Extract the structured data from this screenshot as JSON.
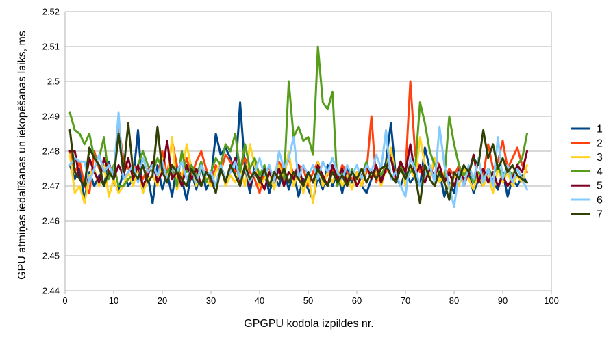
{
  "chart_data": {
    "type": "line",
    "title": "",
    "xlabel": "GPGPU kodola izpildes nr.",
    "ylabel": "GPU atmiņas iedalīšanas un iekopēšanas laiks, ms",
    "xlim": [
      0,
      100
    ],
    "ylim": [
      2.44,
      2.52
    ],
    "xticks": [
      "0",
      "10",
      "20",
      "30",
      "40",
      "50",
      "60",
      "70",
      "80",
      "90",
      "100"
    ],
    "yticks": [
      "2.44",
      "2.45",
      "2.46",
      "2.47",
      "2.48",
      "2.49",
      "2.5",
      "2.51",
      "2.52"
    ],
    "grid": true,
    "legend_position": "right",
    "series": [
      {
        "name": "1",
        "color": "#004586",
        "values": [
          2.476,
          2.472,
          2.475,
          2.466,
          2.474,
          2.47,
          2.473,
          2.47,
          2.477,
          2.471,
          2.469,
          2.474,
          2.47,
          2.472,
          2.486,
          2.468,
          2.473,
          2.465,
          2.476,
          2.469,
          2.474,
          2.467,
          2.476,
          2.472,
          2.466,
          2.474,
          2.469,
          2.476,
          2.469,
          2.472,
          2.485,
          2.479,
          2.481,
          2.478,
          2.473,
          2.494,
          2.475,
          2.468,
          2.476,
          2.471,
          2.474,
          2.468,
          2.473,
          2.47,
          2.475,
          2.469,
          2.474,
          2.467,
          2.472,
          2.469,
          2.466,
          2.473,
          2.469,
          2.476,
          2.47,
          2.474,
          2.468,
          2.475,
          2.471,
          2.474,
          2.47,
          2.468,
          2.472,
          2.475,
          2.471,
          2.477,
          2.488,
          2.473,
          2.47,
          2.474,
          2.471,
          2.473,
          2.47,
          2.481,
          2.475,
          2.472,
          2.474,
          2.467,
          2.471,
          2.468,
          2.475,
          2.47,
          2.474,
          2.468,
          2.472,
          2.47,
          2.475,
          2.471,
          2.469,
          2.474,
          2.467,
          2.472,
          2.47,
          2.473,
          2.471
        ]
      },
      {
        "name": "2",
        "color": "#ff420e",
        "values": [
          2.48,
          2.474,
          2.477,
          2.47,
          2.468,
          2.48,
          2.475,
          2.477,
          2.476,
          2.474,
          2.487,
          2.478,
          2.475,
          2.476,
          2.474,
          2.472,
          2.475,
          2.476,
          2.472,
          2.48,
          2.473,
          2.483,
          2.476,
          2.472,
          2.478,
          2.473,
          2.477,
          2.48,
          2.475,
          2.471,
          2.476,
          2.474,
          2.479,
          2.477,
          2.474,
          2.475,
          2.478,
          2.474,
          2.472,
          2.468,
          2.474,
          2.475,
          2.472,
          2.477,
          2.474,
          2.478,
          2.473,
          2.476,
          2.475,
          2.47,
          2.474,
          2.477,
          2.472,
          2.473,
          2.475,
          2.471,
          2.476,
          2.474,
          2.472,
          2.473,
          2.47,
          2.474,
          2.49,
          2.471,
          2.476,
          2.474,
          2.479,
          2.472,
          2.477,
          2.474,
          2.5,
          2.479,
          2.474,
          2.476,
          2.472,
          2.478,
          2.476,
          2.471,
          2.475,
          2.473,
          2.476,
          2.47,
          2.474,
          2.472,
          2.477,
          2.473,
          2.482,
          2.475,
          2.477,
          2.483,
          2.475,
          2.478,
          2.481,
          2.476,
          2.474
        ]
      },
      {
        "name": "3",
        "color": "#ffd320",
        "values": [
          2.479,
          2.468,
          2.47,
          2.465,
          2.473,
          2.475,
          2.47,
          2.476,
          2.467,
          2.472,
          2.468,
          2.47,
          2.474,
          2.47,
          2.476,
          2.468,
          2.472,
          2.473,
          2.47,
          2.478,
          2.471,
          2.484,
          2.469,
          2.473,
          2.482,
          2.475,
          2.47,
          2.476,
          2.472,
          2.47,
          2.474,
          2.477,
          2.47,
          2.473,
          2.471,
          2.475,
          2.47,
          2.482,
          2.476,
          2.47,
          2.472,
          2.474,
          2.469,
          2.476,
          2.472,
          2.48,
          2.47,
          2.474,
          2.468,
          2.473,
          2.465,
          2.477,
          2.47,
          2.474,
          2.471,
          2.475,
          2.47,
          2.473,
          2.469,
          2.474,
          2.47,
          2.476,
          2.472,
          2.474,
          2.47,
          2.475,
          2.481,
          2.472,
          2.477,
          2.47,
          2.475,
          2.472,
          2.484,
          2.476,
          2.473,
          2.478,
          2.471,
          2.474,
          2.469,
          2.473,
          2.47,
          2.475,
          2.472,
          2.469,
          2.474,
          2.47,
          2.473,
          2.468,
          2.475,
          2.471,
          2.474,
          2.47,
          2.473,
          2.471,
          2.476
        ]
      },
      {
        "name": "4",
        "color": "#579d1c",
        "values": [
          2.491,
          2.486,
          2.485,
          2.482,
          2.485,
          2.478,
          2.478,
          2.484,
          2.472,
          2.476,
          2.47,
          2.47,
          2.472,
          2.473,
          2.476,
          2.48,
          2.476,
          2.474,
          2.478,
          2.475,
          2.474,
          2.476,
          2.47,
          2.48,
          2.474,
          2.476,
          2.473,
          2.477,
          2.471,
          2.474,
          2.478,
          2.476,
          2.482,
          2.48,
          2.485,
          2.474,
          2.482,
          2.475,
          2.478,
          2.473,
          2.476,
          2.47,
          2.474,
          2.475,
          2.471,
          2.5,
          2.484,
          2.487,
          2.483,
          2.484,
          2.479,
          2.51,
          2.494,
          2.492,
          2.497,
          2.47,
          2.474,
          2.471,
          2.475,
          2.47,
          2.473,
          2.477,
          2.472,
          2.475,
          2.473,
          2.476,
          2.478,
          2.474,
          2.476,
          2.472,
          2.474,
          2.475,
          2.494,
          2.488,
          2.48,
          2.476,
          2.474,
          2.472,
          2.49,
          2.482,
          2.476,
          2.473,
          2.475,
          2.471,
          2.474,
          2.472,
          2.475,
          2.473,
          2.476,
          2.472,
          2.475,
          2.473,
          2.476,
          2.478,
          2.485
        ]
      },
      {
        "name": "5",
        "color": "#7e0021",
        "values": [
          2.48,
          2.48,
          2.472,
          2.47,
          2.478,
          2.474,
          2.471,
          2.478,
          2.474,
          2.472,
          2.476,
          2.473,
          2.478,
          2.472,
          2.476,
          2.47,
          2.473,
          2.477,
          2.471,
          2.474,
          2.483,
          2.472,
          2.474,
          2.47,
          2.476,
          2.472,
          2.475,
          2.47,
          2.474,
          2.472,
          2.47,
          2.476,
          2.472,
          2.474,
          2.478,
          2.471,
          2.475,
          2.47,
          2.474,
          2.472,
          2.469,
          2.474,
          2.471,
          2.475,
          2.47,
          2.474,
          2.472,
          2.476,
          2.47,
          2.474,
          2.471,
          2.476,
          2.473,
          2.47,
          2.476,
          2.472,
          2.475,
          2.471,
          2.474,
          2.47,
          2.473,
          2.476,
          2.472,
          2.476,
          2.471,
          2.475,
          2.478,
          2.472,
          2.477,
          2.474,
          2.482,
          2.473,
          2.476,
          2.471,
          2.475,
          2.473,
          2.476,
          2.471,
          2.474,
          2.47,
          2.474,
          2.472,
          2.473,
          2.479,
          2.471,
          2.475,
          2.471,
          2.474,
          2.47,
          2.473,
          2.47,
          2.472,
          2.476,
          2.474,
          2.48
        ]
      },
      {
        "name": "6",
        "color": "#83caff",
        "values": [
          2.476,
          2.478,
          2.477,
          2.477,
          2.471,
          2.475,
          2.479,
          2.474,
          2.476,
          2.473,
          2.491,
          2.472,
          2.474,
          2.476,
          2.471,
          2.478,
          2.474,
          2.476,
          2.473,
          2.477,
          2.472,
          2.475,
          2.474,
          2.477,
          2.472,
          2.475,
          2.471,
          2.476,
          2.473,
          2.474,
          2.47,
          2.476,
          2.472,
          2.474,
          2.477,
          2.472,
          2.475,
          2.471,
          2.474,
          2.478,
          2.473,
          2.476,
          2.471,
          2.48,
          2.475,
          2.478,
          2.484,
          2.472,
          2.476,
          2.473,
          2.476,
          2.472,
          2.477,
          2.474,
          2.478,
          2.474,
          2.472,
          2.476,
          2.473,
          2.476,
          2.472,
          2.476,
          2.474,
          2.479,
          2.475,
          2.486,
          2.472,
          2.474,
          2.47,
          2.467,
          2.478,
          2.475,
          2.47,
          2.473,
          2.476,
          2.471,
          2.487,
          2.476,
          2.47,
          2.464,
          2.474,
          2.47,
          2.476,
          2.472,
          2.478,
          2.471,
          2.475,
          2.47,
          2.484,
          2.472,
          2.476,
          2.471,
          2.475,
          2.472,
          2.469
        ]
      },
      {
        "name": "7",
        "color": "#314004",
        "values": [
          2.486,
          2.474,
          2.472,
          2.47,
          2.481,
          2.478,
          2.476,
          2.47,
          2.474,
          2.472,
          2.485,
          2.474,
          2.488,
          2.474,
          2.472,
          2.476,
          2.471,
          2.473,
          2.487,
          2.474,
          2.471,
          2.476,
          2.474,
          2.472,
          2.47,
          2.475,
          2.472,
          2.47,
          2.474,
          2.472,
          2.468,
          2.475,
          2.471,
          2.476,
          2.473,
          2.47,
          2.476,
          2.472,
          2.474,
          2.471,
          2.475,
          2.47,
          2.474,
          2.472,
          2.475,
          2.471,
          2.474,
          2.472,
          2.47,
          2.474,
          2.471,
          2.475,
          2.472,
          2.47,
          2.474,
          2.471,
          2.473,
          2.47,
          2.474,
          2.472,
          2.475,
          2.471,
          2.474,
          2.472,
          2.475,
          2.476,
          2.473,
          2.471,
          2.475,
          2.472,
          2.476,
          2.473,
          2.465,
          2.476,
          2.472,
          2.47,
          2.474,
          2.471,
          2.466,
          2.474,
          2.472,
          2.476,
          2.474,
          2.478,
          2.476,
          2.486,
          2.478,
          2.482,
          2.475,
          2.478,
          2.474,
          2.476,
          2.473,
          2.472,
          2.471
        ]
      }
    ]
  }
}
